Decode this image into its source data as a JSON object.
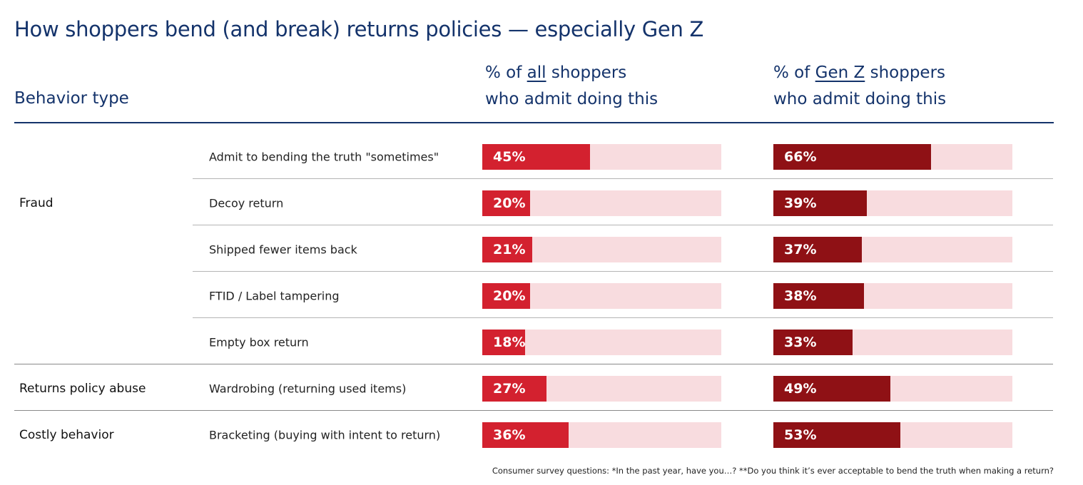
{
  "title": "How shoppers bend (and break) returns policies — especially Gen Z",
  "headers": {
    "behavior": "Behavior type",
    "all_pre": "% of ",
    "all_u": "all",
    "all_post": " shoppers",
    "all_line2": "who admit doing this",
    "genz_pre": "% of ",
    "genz_u": "Gen Z",
    "genz_post": " shoppers",
    "genz_line2": "who admit doing this"
  },
  "colors": {
    "navy": "#14336b",
    "all": "#d3212f",
    "genz": "#8f1115",
    "track": "#f8dcdf"
  },
  "chart_data": {
    "type": "bar",
    "title": "How shoppers bend (and break) returns policies — especially Gen Z",
    "xlim": [
      0,
      100
    ],
    "rows": [
      {
        "category": "",
        "label": "Admit to bending the truth \"sometimes\"",
        "all": 45,
        "genz": 66
      },
      {
        "category": "Fraud",
        "label": "Decoy return",
        "all": 20,
        "genz": 39
      },
      {
        "category": "",
        "label": "Shipped fewer items back",
        "all": 21,
        "genz": 37
      },
      {
        "category": "",
        "label": "FTID / Label tampering",
        "all": 20,
        "genz": 38
      },
      {
        "category": "",
        "label": "Empty box return",
        "all": 18,
        "genz": 33
      },
      {
        "category": "Returns policy abuse",
        "label": "Wardrobing (returning used items)",
        "all": 27,
        "genz": 49
      },
      {
        "category": "Costly behavior",
        "label": "Bracketing (buying with intent to return)",
        "all": 36,
        "genz": 53
      }
    ],
    "series": [
      {
        "name": "% of all shoppers who admit doing this",
        "key": "all"
      },
      {
        "name": "% of Gen Z shoppers who admit doing this",
        "key": "genz"
      }
    ]
  },
  "footnote": "Consumer survey questions: *In the past year, have you…? **Do you think it’s ever acceptable to bend the truth when making a return?"
}
